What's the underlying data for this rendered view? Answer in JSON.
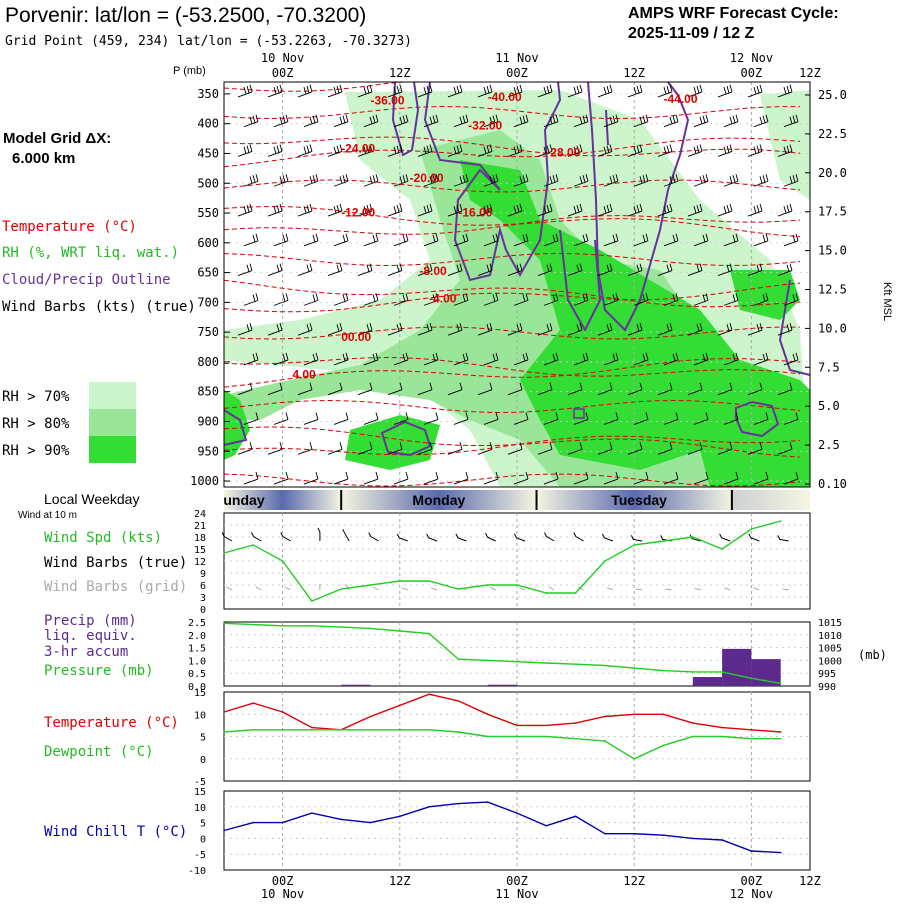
{
  "header": {
    "title": "Porvenir:  lat/lon = (-53.2500, -70.3200)",
    "subtitle": "Grid Point (459, 234) lat/lon = (-53.2263, -70.3273)",
    "model_title": "AMPS WRF Forecast Cycle:",
    "cycle": "2025-11-09 / 12  Z"
  },
  "left_panel": {
    "grid_label": "Model Grid ΔX:",
    "grid_value": "6.000 km",
    "legend_temperature": "Temperature (°C)",
    "legend_rh": "RH (%, WRT liq. wat.)",
    "legend_cloud": "Cloud/Precip Outline",
    "legend_wind": "Wind Barbs (kts) (true)",
    "rh_levels": [
      {
        "label": "RH > 70%",
        "color": "#ccf5cc"
      },
      {
        "label": "RH > 80%",
        "color": "#99e699"
      },
      {
        "label": "RH > 90%",
        "color": "#33dd33"
      }
    ]
  },
  "colors": {
    "temperature": "#dd0000",
    "dewpoint": "#22cc22",
    "wind_speed": "#22cc22",
    "pressure": "#22cc22",
    "cloud_outline": "#663399",
    "precip": "#5c2a8c",
    "wind_chill": "#0000aa",
    "grid": "#aaaaaa",
    "rh70": "#ccf5cc",
    "rh80": "#99e699",
    "rh90": "#33dd33"
  },
  "time_axis": {
    "top_labels": [
      "00Z",
      "12Z",
      "00Z",
      "12Z",
      "00Z",
      "12Z"
    ],
    "top_dates": [
      "10 Nov",
      "11 Nov",
      "12 Nov"
    ],
    "bottom_labels": [
      "00Z",
      "12Z",
      "00Z",
      "12Z",
      "00Z",
      "12Z"
    ],
    "bottom_dates": [
      "10 Nov",
      "11 Nov",
      "12 Nov"
    ],
    "weekday_title": "Local Weekday",
    "weekdays": [
      "unday",
      "Monday",
      "Tuesday"
    ],
    "wind_height_label": "Wind at 10 m"
  },
  "chart_data": [
    {
      "type": "contour",
      "panel": "vertical cross-section",
      "xlabel": "",
      "ylabel": "P (mb)",
      "y_right_label": "Kft MSL",
      "pressure_ticks": [
        "350",
        "400",
        "450",
        "500",
        "550",
        "600",
        "650",
        "700",
        "750",
        "800",
        "850",
        "900",
        "950",
        "1000"
      ],
      "height_ticks": [
        "25.0",
        "22.5",
        "20.0",
        "17.5",
        "15.0",
        "12.5",
        "10.0",
        "7.5",
        "5.0",
        "2.5",
        "0.10"
      ],
      "temperature_labels": [
        {
          "text": "-36.00",
          "hour": 15,
          "p": 368
        },
        {
          "text": "-40.00",
          "hour": 27,
          "p": 362
        },
        {
          "text": "-44.00",
          "hour": 45,
          "p": 365
        },
        {
          "text": "-32.00",
          "hour": 25,
          "p": 410
        },
        {
          "text": "-24.00",
          "hour": 12,
          "p": 448
        },
        {
          "text": "-28.00",
          "hour": 33,
          "p": 455
        },
        {
          "text": "-20.00",
          "hour": 19,
          "p": 498
        },
        {
          "text": "-12.00",
          "hour": 12,
          "p": 556
        },
        {
          "text": "-16.00",
          "hour": 24,
          "p": 556
        },
        {
          "text": "-8.00",
          "hour": 20,
          "p": 654
        },
        {
          "text": "-4.00",
          "hour": 21,
          "p": 700
        },
        {
          "text": "00.00",
          "hour": 12,
          "p": 765
        },
        {
          "text": "4.00",
          "hour": 7,
          "p": 828
        }
      ]
    },
    {
      "type": "line",
      "panel": "wind",
      "series_names": [
        "Wind Spd (kts)",
        "Wind Barbs (true)",
        "Wind Barbs (grid)"
      ],
      "ylim": [
        0,
        24
      ],
      "y_ticks": [
        "0",
        "3",
        "6",
        "9",
        "12",
        "15",
        "18",
        "21",
        "24"
      ],
      "x_hours": [
        0,
        3,
        6,
        9,
        12,
        15,
        18,
        21,
        24,
        27,
        30,
        33,
        36,
        39,
        42,
        45,
        48,
        51,
        54,
        57
      ],
      "series": [
        {
          "name": "Wind Spd (kts)",
          "values": [
            14,
            16,
            12,
            2,
            5,
            6,
            7,
            7,
            5,
            6,
            6,
            4,
            4,
            12,
            16,
            17,
            18,
            15,
            20,
            22
          ]
        }
      ],
      "barb_dirs_deg": [
        300,
        300,
        300,
        0,
        330,
        300,
        290,
        290,
        290,
        295,
        290,
        300,
        300,
        290,
        280,
        280,
        285,
        290,
        290,
        280
      ]
    },
    {
      "type": "bar+line",
      "panel": "precip-pressure",
      "series_names": [
        "Precip (mm)",
        "liq. equiv.",
        "3-hr accum",
        "Pressure (mb)"
      ],
      "left_ylim": [
        0,
        2.5
      ],
      "left_ticks": [
        "0.0",
        "0.5",
        "1.0",
        "1.5",
        "2.0",
        "2.5"
      ],
      "right_ylim": [
        990,
        1015
      ],
      "right_ticks": [
        "990",
        "995",
        "1000",
        "1005",
        "1010",
        "1015"
      ],
      "right_unit": "(mb)",
      "x_hours": [
        0,
        3,
        6,
        9,
        12,
        15,
        18,
        21,
        24,
        27,
        30,
        33,
        36,
        39,
        42,
        45,
        48,
        51,
        54,
        57
      ],
      "series": [
        {
          "name": "Pressure (mb)",
          "values": [
            1014.5,
            1014,
            1013.5,
            1013.5,
            1013,
            1012.5,
            1011.5,
            1010.5,
            1000.5,
            1000,
            999.5,
            999,
            998.5,
            998,
            997,
            996,
            995.5,
            995.5,
            993,
            991
          ]
        },
        {
          "name": "Precip (mm)",
          "values": [
            0,
            0,
            0,
            0,
            0.05,
            0,
            0,
            0,
            0,
            0.05,
            0,
            0,
            0,
            0,
            0,
            0,
            0.35,
            1.45,
            1.05,
            0
          ]
        }
      ]
    },
    {
      "type": "line",
      "panel": "temperature",
      "ylim": [
        -5,
        15
      ],
      "y_ticks": [
        "-5",
        "0",
        "5",
        "10",
        "15"
      ],
      "x_hours": [
        0,
        3,
        6,
        9,
        12,
        15,
        18,
        21,
        24,
        27,
        30,
        33,
        36,
        39,
        42,
        45,
        48,
        51,
        54,
        57
      ],
      "series": [
        {
          "name": "Temperature (°C)",
          "values": [
            10.5,
            12.5,
            10.5,
            7,
            6.5,
            9.5,
            12,
            14.5,
            13,
            10,
            7.5,
            7.5,
            8,
            9.5,
            10,
            10,
            8,
            7,
            6.5,
            6
          ]
        },
        {
          "name": "Dewpoint (°C)",
          "values": [
            6,
            6.5,
            6.5,
            6.5,
            6.5,
            6.5,
            6.5,
            6.5,
            6,
            5,
            5,
            5,
            4.5,
            4,
            0,
            3,
            5,
            5,
            4.5,
            4.5
          ]
        }
      ]
    },
    {
      "type": "line",
      "panel": "wind chill",
      "ylim": [
        -10,
        15
      ],
      "y_ticks": [
        "-10",
        "-5",
        "0",
        "5",
        "10",
        "15"
      ],
      "x_hours": [
        0,
        3,
        6,
        9,
        12,
        15,
        18,
        21,
        24,
        27,
        30,
        33,
        36,
        39,
        42,
        45,
        48,
        51,
        54,
        57
      ],
      "series": [
        {
          "name": "Wind Chill T (°C)",
          "values": [
            2.5,
            5,
            5,
            8,
            6,
            5,
            7,
            10,
            11,
            11.5,
            8,
            4,
            7,
            1.5,
            1.5,
            1,
            0,
            -0.5,
            -4,
            -4.5
          ]
        }
      ]
    }
  ]
}
